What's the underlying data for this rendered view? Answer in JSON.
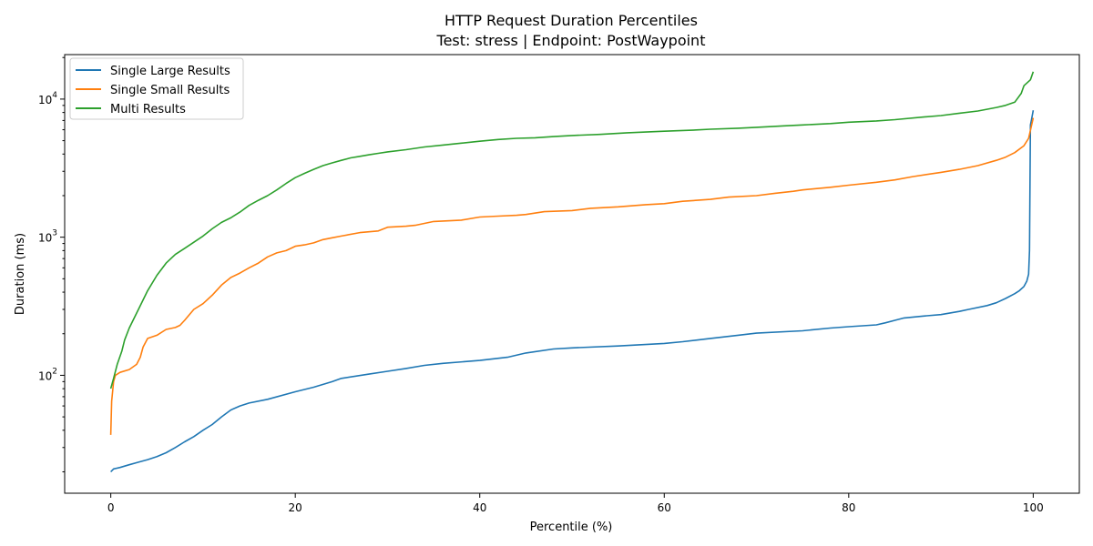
{
  "chart_data": {
    "type": "line",
    "title": "HTTP Request Duration Percentiles",
    "subtitle": "Test: stress | Endpoint: PostWaypoint",
    "xlabel": "Percentile (%)",
    "ylabel": "Duration (ms)",
    "xlim": [
      -5,
      105
    ],
    "ylim": [
      14,
      21000
    ],
    "yscale": "log",
    "grid": false,
    "legend_position": "upper-left",
    "x_ticks": [
      {
        "value": 0,
        "label": "0"
      },
      {
        "value": 20,
        "label": "20"
      },
      {
        "value": 40,
        "label": "40"
      },
      {
        "value": 60,
        "label": "60"
      },
      {
        "value": 80,
        "label": "80"
      },
      {
        "value": 100,
        "label": "100"
      }
    ],
    "y_ticks": [
      {
        "value": 100,
        "base": "10",
        "exp": "2"
      },
      {
        "value": 1000,
        "base": "10",
        "exp": "3"
      },
      {
        "value": 10000,
        "base": "10",
        "exp": "4"
      }
    ],
    "series": [
      {
        "name": "Single Large Results",
        "color": "#1f77b4",
        "points": [
          [
            0,
            20
          ],
          [
            0.3,
            21
          ],
          [
            1,
            21.5
          ],
          [
            2,
            22.5
          ],
          [
            3,
            23.5
          ],
          [
            4,
            24.5
          ],
          [
            5,
            25.8
          ],
          [
            6,
            27.5
          ],
          [
            7,
            30
          ],
          [
            8,
            33
          ],
          [
            9,
            36
          ],
          [
            10,
            40
          ],
          [
            11,
            44
          ],
          [
            12,
            50
          ],
          [
            13,
            56
          ],
          [
            14,
            60
          ],
          [
            15,
            63
          ],
          [
            17,
            67
          ],
          [
            20,
            76
          ],
          [
            22,
            82
          ],
          [
            24,
            90
          ],
          [
            25,
            95
          ],
          [
            28,
            102
          ],
          [
            30,
            107
          ],
          [
            32,
            112
          ],
          [
            34,
            118
          ],
          [
            36,
            122
          ],
          [
            40,
            128
          ],
          [
            43,
            135
          ],
          [
            45,
            145
          ],
          [
            48,
            155
          ],
          [
            50,
            158
          ],
          [
            55,
            163
          ],
          [
            60,
            170
          ],
          [
            62,
            175
          ],
          [
            65,
            185
          ],
          [
            68,
            195
          ],
          [
            70,
            202
          ],
          [
            75,
            210
          ],
          [
            78,
            220
          ],
          [
            80,
            225
          ],
          [
            83,
            232
          ],
          [
            84,
            240
          ],
          [
            85,
            250
          ],
          [
            86,
            260
          ],
          [
            88,
            268
          ],
          [
            90,
            275
          ],
          [
            92,
            290
          ],
          [
            93,
            300
          ],
          [
            95,
            320
          ],
          [
            96,
            335
          ],
          [
            97,
            360
          ],
          [
            98,
            390
          ],
          [
            98.5,
            410
          ],
          [
            99,
            440
          ],
          [
            99.3,
            480
          ],
          [
            99.5,
            540
          ],
          [
            99.6,
            800
          ],
          [
            99.7,
            6500
          ],
          [
            99.8,
            7000
          ],
          [
            100,
            8300
          ]
        ]
      },
      {
        "name": "Single Small Results",
        "color": "#ff7f0e",
        "points": [
          [
            0,
            37
          ],
          [
            0.1,
            65
          ],
          [
            0.3,
            90
          ],
          [
            0.5,
            100
          ],
          [
            1,
            105
          ],
          [
            2,
            110
          ],
          [
            2.8,
            120
          ],
          [
            3.2,
            135
          ],
          [
            3.5,
            160
          ],
          [
            4,
            185
          ],
          [
            5,
            195
          ],
          [
            6,
            215
          ],
          [
            7,
            222
          ],
          [
            7.5,
            230
          ],
          [
            8,
            250
          ],
          [
            9,
            300
          ],
          [
            10,
            330
          ],
          [
            11,
            380
          ],
          [
            12,
            450
          ],
          [
            13,
            510
          ],
          [
            14,
            550
          ],
          [
            15,
            600
          ],
          [
            16,
            650
          ],
          [
            17,
            720
          ],
          [
            18,
            770
          ],
          [
            19,
            800
          ],
          [
            20,
            860
          ],
          [
            21,
            880
          ],
          [
            22,
            910
          ],
          [
            23,
            960
          ],
          [
            24,
            990
          ],
          [
            25,
            1020
          ],
          [
            27,
            1080
          ],
          [
            29,
            1110
          ],
          [
            30,
            1180
          ],
          [
            32,
            1200
          ],
          [
            33,
            1220
          ],
          [
            35,
            1300
          ],
          [
            38,
            1330
          ],
          [
            40,
            1400
          ],
          [
            42,
            1420
          ],
          [
            44,
            1440
          ],
          [
            45,
            1460
          ],
          [
            47,
            1530
          ],
          [
            50,
            1560
          ],
          [
            52,
            1620
          ],
          [
            55,
            1660
          ],
          [
            58,
            1720
          ],
          [
            60,
            1750
          ],
          [
            62,
            1820
          ],
          [
            65,
            1880
          ],
          [
            67,
            1950
          ],
          [
            70,
            2000
          ],
          [
            72,
            2080
          ],
          [
            74,
            2150
          ],
          [
            75,
            2200
          ],
          [
            78,
            2300
          ],
          [
            80,
            2380
          ],
          [
            83,
            2500
          ],
          [
            85,
            2600
          ],
          [
            87,
            2750
          ],
          [
            90,
            2950
          ],
          [
            92,
            3100
          ],
          [
            94,
            3300
          ],
          [
            96,
            3600
          ],
          [
            97,
            3800
          ],
          [
            98,
            4100
          ],
          [
            99,
            4600
          ],
          [
            99.5,
            5200
          ],
          [
            100,
            7300
          ]
        ]
      },
      {
        "name": "Multi Results",
        "color": "#2ca02c",
        "points": [
          [
            0,
            80
          ],
          [
            0.3,
            95
          ],
          [
            0.7,
            120
          ],
          [
            1.2,
            150
          ],
          [
            1.5,
            180
          ],
          [
            2,
            220
          ],
          [
            3,
            300
          ],
          [
            4,
            410
          ],
          [
            5,
            530
          ],
          [
            6,
            650
          ],
          [
            7,
            750
          ],
          [
            8,
            830
          ],
          [
            9,
            920
          ],
          [
            10,
            1020
          ],
          [
            11,
            1150
          ],
          [
            12,
            1280
          ],
          [
            13,
            1380
          ],
          [
            14,
            1520
          ],
          [
            15,
            1700
          ],
          [
            16,
            1850
          ],
          [
            17,
            2000
          ],
          [
            18,
            2200
          ],
          [
            19,
            2450
          ],
          [
            20,
            2700
          ],
          [
            21,
            2900
          ],
          [
            22,
            3100
          ],
          [
            23,
            3300
          ],
          [
            24,
            3450
          ],
          [
            25,
            3600
          ],
          [
            26,
            3750
          ],
          [
            27,
            3850
          ],
          [
            28,
            3950
          ],
          [
            29,
            4050
          ],
          [
            30,
            4150
          ],
          [
            32,
            4300
          ],
          [
            34,
            4500
          ],
          [
            36,
            4650
          ],
          [
            38,
            4800
          ],
          [
            40,
            4950
          ],
          [
            42,
            5100
          ],
          [
            44,
            5200
          ],
          [
            46,
            5250
          ],
          [
            48,
            5350
          ],
          [
            50,
            5450
          ],
          [
            53,
            5550
          ],
          [
            56,
            5700
          ],
          [
            60,
            5850
          ],
          [
            63,
            5950
          ],
          [
            65,
            6050
          ],
          [
            68,
            6150
          ],
          [
            70,
            6250
          ],
          [
            73,
            6400
          ],
          [
            75,
            6500
          ],
          [
            78,
            6650
          ],
          [
            80,
            6800
          ],
          [
            83,
            6950
          ],
          [
            85,
            7100
          ],
          [
            88,
            7400
          ],
          [
            90,
            7600
          ],
          [
            92,
            7900
          ],
          [
            94,
            8200
          ],
          [
            96,
            8700
          ],
          [
            97,
            9000
          ],
          [
            98,
            9500
          ],
          [
            98.7,
            11000
          ],
          [
            99,
            12500
          ],
          [
            99.7,
            13800
          ],
          [
            100,
            15800
          ]
        ]
      }
    ]
  }
}
